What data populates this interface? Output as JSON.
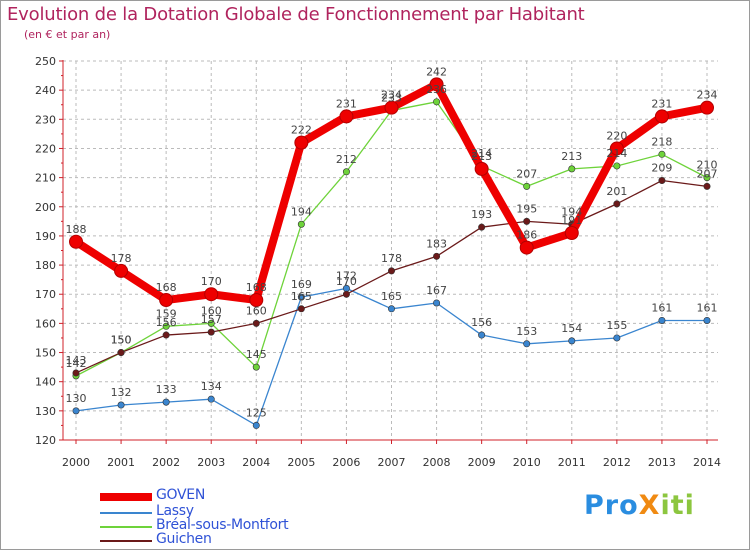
{
  "title": "Evolution de la Dotation Globale de Fonctionnement par Habitant",
  "subtitle": "(en € et par an)",
  "logo": {
    "text": "ProXiti",
    "part1": "Pro",
    "part2": "X",
    "part3": "iti"
  },
  "chart_data": {
    "type": "line",
    "title": "Evolution de la Dotation Globale de Fonctionnement par Habitant",
    "subtitle": "(en € et par an)",
    "xlabel": "",
    "ylabel": "",
    "ylim": [
      120,
      250
    ],
    "yticks": [
      120,
      130,
      140,
      150,
      160,
      170,
      180,
      190,
      200,
      210,
      220,
      230,
      240,
      250
    ],
    "grid": true,
    "legend_position": "bottom-left",
    "categories": [
      "2000",
      "2001",
      "2002",
      "2003",
      "2004",
      "2005",
      "2006",
      "2007",
      "2008",
      "2009",
      "2010",
      "2011",
      "2012",
      "2013",
      "2014"
    ],
    "series": [
      {
        "name": "GOVEN",
        "color": "#ee0000",
        "values": [
          188,
          178,
          168,
          170,
          168,
          222,
          231,
          234,
          242,
          213,
          186,
          191,
          220,
          231,
          234
        ]
      },
      {
        "name": "Lassy",
        "color": "#3a85cf",
        "values": [
          130,
          132,
          133,
          134,
          125,
          169,
          172,
          165,
          167,
          156,
          153,
          154,
          155,
          161,
          161
        ]
      },
      {
        "name": "Bréal-sous-Montfort",
        "color": "#6ed33a",
        "values": [
          142,
          150,
          159,
          160,
          145,
          194,
          212,
          233,
          236,
          214,
          207,
          213,
          214,
          218,
          210
        ]
      },
      {
        "name": "Guichen",
        "color": "#6b1a1a",
        "values": [
          143,
          150,
          156,
          157,
          160,
          165,
          170,
          178,
          183,
          193,
          195,
          194,
          201,
          209,
          207
        ]
      }
    ]
  }
}
